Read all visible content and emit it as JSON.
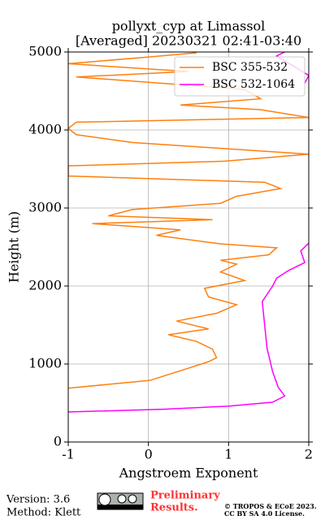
{
  "chart_data": {
    "type": "line",
    "title": "pollyxt_cyp at Limassol",
    "subtitle": "[Averaged] 20230321 02:41-03:40",
    "x_label": "Angstroem Exponent",
    "y_label": "Height (m)",
    "xlim": [
      -1,
      2
    ],
    "xticks": [
      -1,
      0,
      1,
      2
    ],
    "ylim": [
      0,
      5000
    ],
    "yticks": [
      0,
      1000,
      2000,
      3000,
      4000,
      5000
    ],
    "grid": true,
    "legend": "upper right",
    "series": [
      {
        "name": "BSC 355-532",
        "color": "#ff7f0e",
        "heights": [
          690,
          790,
          930,
          1030,
          1080,
          1190,
          1290,
          1375,
          1450,
          1550,
          1650,
          1760,
          1860,
          1970,
          2070,
          2180,
          2280,
          2330,
          2400,
          2490,
          2540,
          2650,
          2720,
          2800,
          2850,
          2900,
          2980,
          3060,
          3150,
          3250,
          3330,
          3410,
          3540,
          3600,
          3690,
          3840,
          3940,
          4020,
          4100,
          4160,
          4260,
          4320,
          4400,
          4520,
          4680,
          4750,
          4850,
          4940,
          4990
        ],
        "values": [
          -1,
          0.02,
          0.45,
          0.75,
          0.85,
          0.8,
          0.6,
          0.25,
          0.75,
          0.35,
          0.85,
          1.1,
          0.75,
          0.7,
          1.2,
          0.9,
          1.1,
          0.9,
          1.5,
          1.6,
          0.9,
          0.1,
          0.4,
          -0.7,
          0.8,
          -0.5,
          -0.2,
          0.9,
          1.1,
          1.65,
          1.45,
          -1,
          -1,
          0.95,
          2,
          -0.2,
          -0.9,
          -1,
          -0.9,
          2,
          1.4,
          0.4,
          1.4,
          1.2,
          -0.9,
          0.5,
          -1,
          0.05,
          0.6
        ]
      },
      {
        "name": "BSC 532-1064",
        "color": "#ff00ff",
        "heights": [
          385,
          420,
          460,
          510,
          590,
          700,
          900,
          1200,
          1500,
          1800,
          2000,
          2100,
          2200,
          2300,
          2450,
          2550,
          4550,
          4600,
          4700,
          4950,
          5000
        ],
        "values": [
          -1,
          0.2,
          1.0,
          1.55,
          1.7,
          1.62,
          1.55,
          1.48,
          1.45,
          1.42,
          1.55,
          1.6,
          1.75,
          1.95,
          1.9,
          2.0,
          null,
          1.95,
          2.0,
          1.6,
          1.7
        ]
      }
    ]
  },
  "footer": {
    "version": "Version: 3.6",
    "method": "Method: Klett",
    "preliminary": "Preliminary",
    "results": "Results.",
    "copyright": "© TROPOS & ECoE 2023.",
    "license": "CC BY SA 4.0 License."
  }
}
